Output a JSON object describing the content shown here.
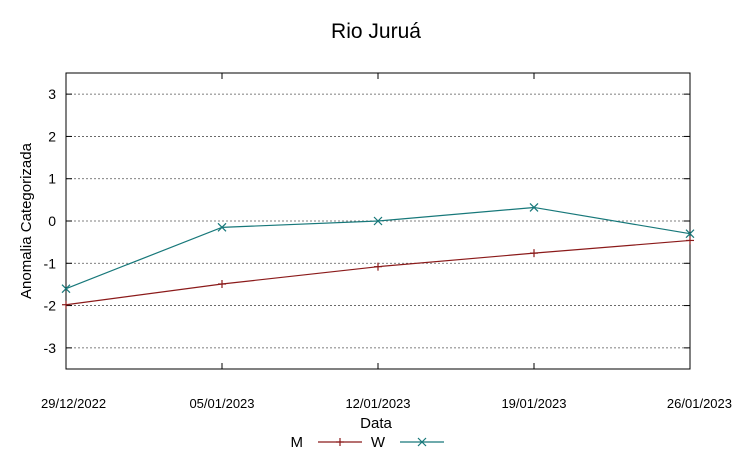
{
  "chart_data": {
    "type": "line",
    "title": "Rio Juruá",
    "xlabel": "Data",
    "ylabel": "Anomalia Categorizada",
    "categories": [
      "29/12/2022",
      "05/01/2023",
      "12/01/2023",
      "19/01/2023",
      "26/01/2023"
    ],
    "ylim": [
      -3.5,
      3.5
    ],
    "yticks": [
      "-3",
      "-2",
      "-1",
      "0",
      "1",
      "2",
      "3"
    ],
    "grid": true,
    "legend_position": "bottom-center",
    "series": [
      {
        "name": "M",
        "color": "#8b1a1a",
        "marker": "plus",
        "values": [
          -1.98,
          -1.49,
          -1.08,
          -0.76,
          -0.46
        ]
      },
      {
        "name": "W",
        "color": "#17787a",
        "marker": "cross",
        "values": [
          -1.6,
          -0.15,
          0.0,
          0.32,
          -0.3
        ]
      }
    ]
  }
}
